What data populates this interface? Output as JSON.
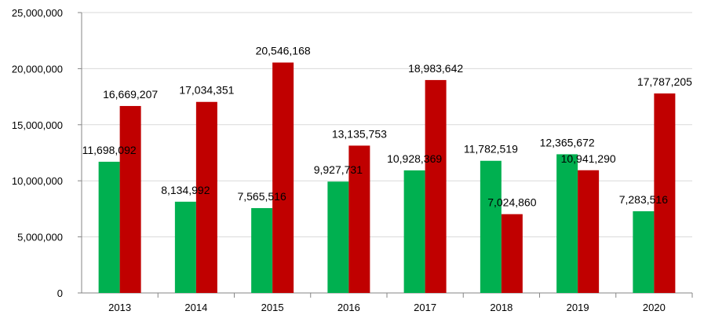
{
  "chart_data": {
    "type": "bar",
    "categories": [
      "2013",
      "2014",
      "2015",
      "2016",
      "2017",
      "2018",
      "2019",
      "2020"
    ],
    "series": [
      {
        "values": [
          11698092,
          8134992,
          7565516,
          9927731,
          10928369,
          11782519,
          12365672,
          7283516
        ],
        "color": "#00B050"
      },
      {
        "values": [
          16669207,
          17034351,
          20546168,
          13135753,
          18983642,
          7024860,
          10941290,
          17787205
        ],
        "color": "#C00000"
      }
    ],
    "data_labels": [
      [
        "11,698,092",
        "8,134,992",
        "7,565,516",
        "9,927,731",
        "10,928,369",
        "11,782,519",
        "12,365,672",
        "7,283,516"
      ],
      [
        "16,669,207",
        "17,034,351",
        "20,546,168",
        "13,135,753",
        "18,983,642",
        "7,024,860",
        "10,941,290",
        "17,787,205"
      ]
    ],
    "ylim": [
      0,
      25000000
    ],
    "yticks": [
      "0",
      "5,000,000",
      "10,000,000",
      "15,000,000",
      "20,000,000",
      "25,000,000"
    ],
    "grid": true,
    "legend": "none"
  }
}
